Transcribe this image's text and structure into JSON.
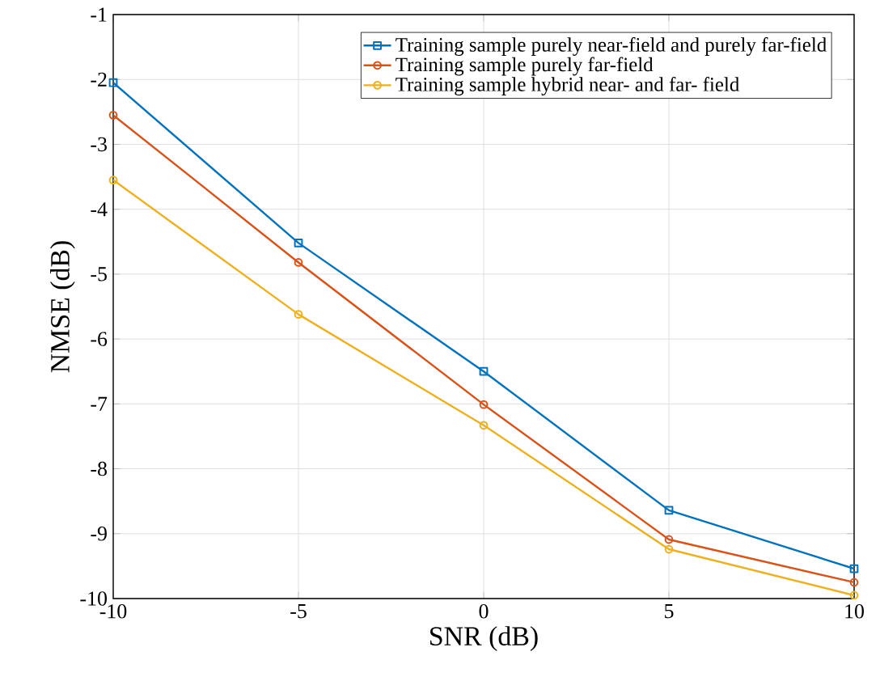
{
  "chart_data": {
    "type": "line",
    "xlabel": "SNR (dB)",
    "ylabel": "NMSE (dB)",
    "x": [
      -10,
      -5,
      0,
      5,
      10
    ],
    "series": [
      {
        "name": "Training sample purely near-field and purely far-field",
        "color": "#0072bd",
        "marker": "square",
        "values": [
          -2.05,
          -4.52,
          -6.5,
          -8.64,
          -9.54
        ]
      },
      {
        "name": "Training sample purely far-field",
        "color": "#d95319",
        "marker": "circle",
        "values": [
          -2.55,
          -4.82,
          -7.01,
          -9.09,
          -9.75
        ]
      },
      {
        "name": "Training sample hybrid near- and far- field",
        "color": "#edb120",
        "marker": "circle",
        "values": [
          -3.55,
          -5.62,
          -7.33,
          -9.24,
          -9.95
        ]
      }
    ],
    "xlim": [
      -10,
      10
    ],
    "ylim": [
      -10,
      -1
    ],
    "xticks": [
      -10,
      -5,
      0,
      5,
      10
    ],
    "yticks": [
      -10,
      -9,
      -8,
      -7,
      -6,
      -5,
      -4,
      -3,
      -2,
      -1
    ],
    "grid": true,
    "legend": "top right",
    "line_style": "solid"
  }
}
